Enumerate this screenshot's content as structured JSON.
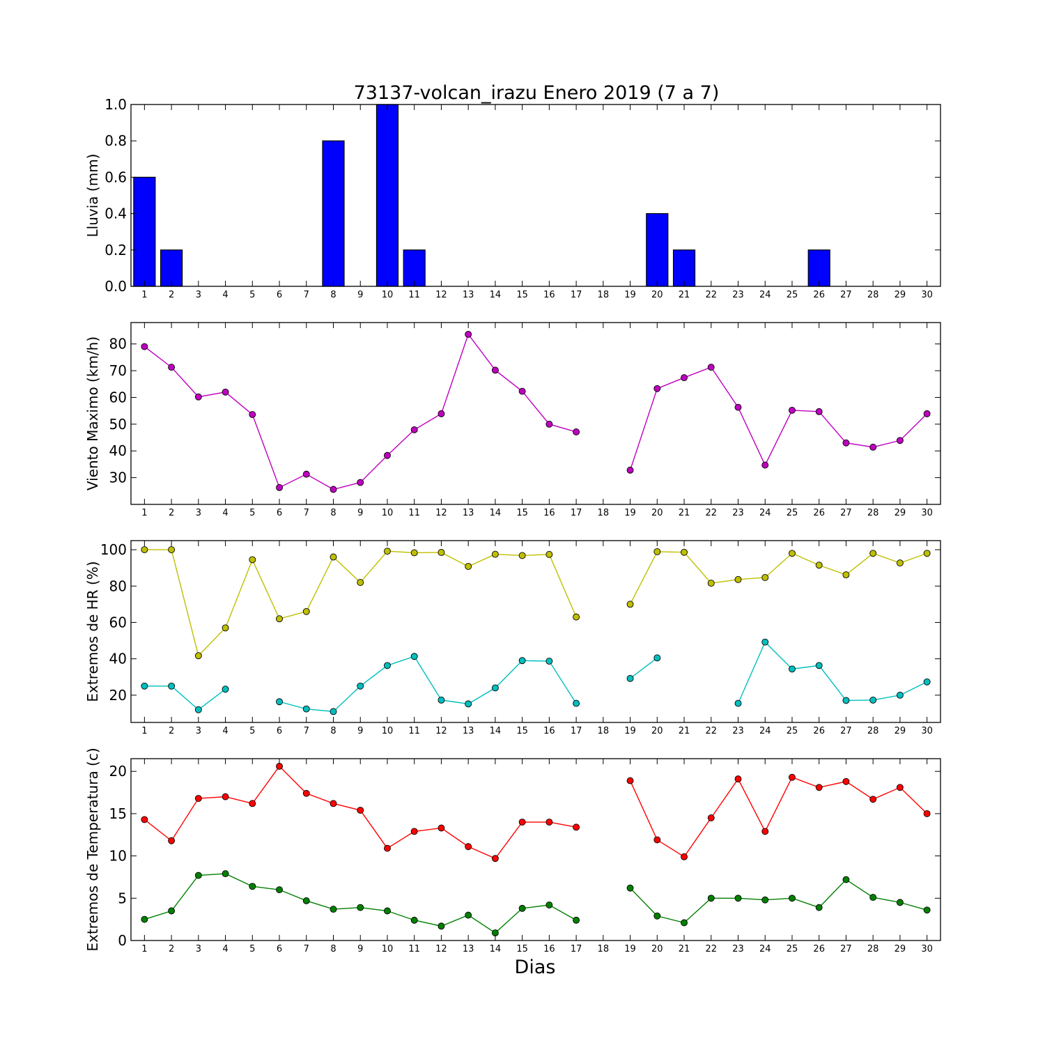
{
  "figure": {
    "title": "73137-volcan_irazu Enero 2019  (7 a 7)",
    "xlabel": "Dias"
  },
  "colors": {
    "rain": "#0000ff",
    "wind": "#bf00bf",
    "hr_max": "#bfbf00",
    "hr_min": "#00bfbf",
    "temp_max": "#ff0000",
    "temp_min": "#008000"
  },
  "chart_data": [
    {
      "type": "bar",
      "ylabel": "Lluvia (mm)",
      "ylim": [
        0,
        1.0
      ],
      "yticks": [
        0.0,
        0.2,
        0.4,
        0.6,
        0.8,
        1.0
      ],
      "ytick_labels": [
        "0.0",
        "0.2",
        "0.4",
        "0.6",
        "0.8",
        "1.0"
      ],
      "categories": [
        "1",
        "2",
        "3",
        "4",
        "5",
        "6",
        "7",
        "8",
        "9",
        "10",
        "11",
        "12",
        "13",
        "14",
        "15",
        "16",
        "17",
        "18",
        "19",
        "20",
        "21",
        "22",
        "23",
        "24",
        "25",
        "26",
        "27",
        "28",
        "29",
        "30"
      ],
      "values": [
        0.6,
        0.2,
        0,
        0,
        0,
        0,
        0,
        0.8,
        0,
        1.0,
        0.2,
        0,
        0,
        0,
        0,
        0,
        0,
        0,
        0,
        0.4,
        0.2,
        0,
        0,
        0,
        0,
        0.2,
        0,
        0,
        0,
        0
      ],
      "grid": false
    },
    {
      "type": "line",
      "ylabel": "Viento Maximo (km/h)",
      "ylim": [
        20,
        88
      ],
      "yticks": [
        30,
        40,
        50,
        60,
        70,
        80
      ],
      "ytick_labels": [
        "30",
        "40",
        "50",
        "60",
        "70",
        "80"
      ],
      "x": [
        1,
        2,
        3,
        4,
        5,
        6,
        7,
        8,
        9,
        10,
        11,
        12,
        13,
        14,
        15,
        16,
        17,
        18,
        19,
        20,
        21,
        22,
        23,
        24,
        25,
        26,
        27,
        28,
        29,
        30
      ],
      "series": [
        {
          "values": [
            79,
            71.3,
            60.2,
            62,
            53.6,
            26.3,
            31.3,
            25.6,
            28.2,
            38.3,
            47.9,
            53.9,
            83.6,
            70.2,
            62.3,
            50,
            47.1,
            null,
            32.8,
            63.3,
            67.4,
            71.3,
            56.3,
            34.7,
            55.2,
            54.7,
            43,
            41.4,
            43.9,
            53.9
          ]
        }
      ],
      "grid": false
    },
    {
      "type": "line",
      "ylabel": "Extremos de HR (%)",
      "ylim": [
        5,
        105
      ],
      "yticks": [
        20,
        40,
        60,
        80,
        100
      ],
      "ytick_labels": [
        "20",
        "40",
        "60",
        "80",
        "100"
      ],
      "x": [
        1,
        2,
        3,
        4,
        5,
        6,
        7,
        8,
        9,
        10,
        11,
        12,
        13,
        14,
        15,
        16,
        17,
        18,
        19,
        20,
        21,
        22,
        23,
        24,
        25,
        26,
        27,
        28,
        29,
        30
      ],
      "series": [
        {
          "values": [
            100,
            100,
            41.7,
            57,
            94.5,
            62,
            66,
            96,
            82,
            99.2,
            98.3,
            98.5,
            90.8,
            97.5,
            96.8,
            97.4,
            63,
            null,
            70,
            98.9,
            98.6,
            81.6,
            83.6,
            84.7,
            98,
            91.5,
            86.2,
            98,
            92.7,
            98
          ]
        },
        {
          "values": [
            25,
            25,
            12,
            23.3,
            null,
            16.4,
            12.4,
            11,
            25,
            36.3,
            41.3,
            17.3,
            15.2,
            24,
            39,
            38.7,
            15.5,
            null,
            29.2,
            40.5,
            null,
            null,
            15.5,
            49.2,
            34.4,
            36.3,
            17.1,
            17.3,
            20,
            27.3
          ]
        }
      ],
      "grid": false
    },
    {
      "type": "line",
      "ylabel": "Extremos de Temperatura (c)",
      "ylim": [
        0,
        21.5
      ],
      "yticks": [
        0,
        5,
        10,
        15,
        20
      ],
      "ytick_labels": [
        "0",
        "5",
        "10",
        "15",
        "20"
      ],
      "x": [
        1,
        2,
        3,
        4,
        5,
        6,
        7,
        8,
        9,
        10,
        11,
        12,
        13,
        14,
        15,
        16,
        17,
        18,
        19,
        20,
        21,
        22,
        23,
        24,
        25,
        26,
        27,
        28,
        29,
        30
      ],
      "series": [
        {
          "values": [
            14.3,
            11.8,
            16.8,
            17,
            16.2,
            20.6,
            17.4,
            16.2,
            15.4,
            10.9,
            12.9,
            13.3,
            11.1,
            9.7,
            14,
            14,
            13.4,
            null,
            18.9,
            11.9,
            9.9,
            14.5,
            19.1,
            12.9,
            19.3,
            18.1,
            18.8,
            16.7,
            18.1,
            15
          ]
        },
        {
          "values": [
            2.5,
            3.5,
            7.7,
            7.9,
            6.4,
            6,
            4.7,
            3.7,
            3.9,
            3.5,
            2.4,
            1.7,
            3,
            0.9,
            3.8,
            4.2,
            2.4,
            null,
            6.2,
            2.9,
            2.1,
            5,
            5,
            4.8,
            5,
            3.9,
            7.2,
            5.1,
            4.5,
            3.6
          ]
        }
      ],
      "grid": false
    }
  ]
}
